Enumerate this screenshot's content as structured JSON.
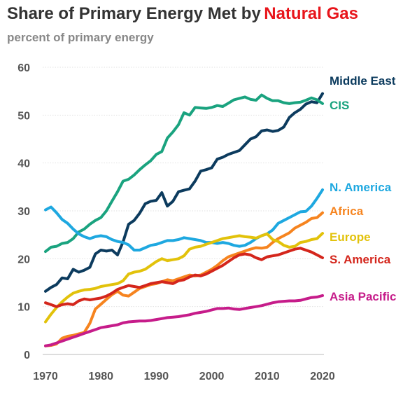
{
  "chart_data": {
    "type": "line",
    "title": "Share of Primary Energy Met by",
    "title_highlight": "Natural Gas",
    "title_highlight_color": "#e8151b",
    "subtitle": "percent of primary energy",
    "xlabel": "",
    "ylabel": "",
    "xlim": [
      1970,
      2020
    ],
    "ylim": [
      0,
      60
    ],
    "x_ticks": [
      1970,
      1980,
      1990,
      2000,
      2010,
      2020
    ],
    "y_ticks": [
      0,
      10,
      20,
      30,
      40,
      50,
      60
    ],
    "grid": true,
    "legend": "direct labels at right end of lines",
    "x": [
      1970,
      1971,
      1972,
      1973,
      1974,
      1975,
      1976,
      1977,
      1978,
      1979,
      1980,
      1981,
      1982,
      1983,
      1984,
      1985,
      1986,
      1987,
      1988,
      1989,
      1990,
      1991,
      1992,
      1993,
      1994,
      1995,
      1996,
      1997,
      1998,
      1999,
      2000,
      2001,
      2002,
      2003,
      2004,
      2005,
      2006,
      2007,
      2008,
      2009,
      2010,
      2011,
      2012,
      2013,
      2014,
      2015,
      2016,
      2017,
      2018,
      2019,
      2020
    ],
    "series": [
      {
        "name": "Middle East",
        "color": "#0c3b5e",
        "values": [
          13.2,
          14.0,
          14.6,
          16.0,
          15.8,
          17.8,
          17.2,
          17.6,
          18.2,
          21.0,
          21.8,
          21.6,
          21.8,
          20.8,
          23.5,
          27.2,
          28.0,
          29.5,
          31.5,
          32.0,
          32.2,
          33.8,
          31.0,
          32.0,
          34.0,
          34.3,
          34.6,
          36.2,
          38.3,
          38.6,
          39.0,
          40.8,
          41.2,
          41.8,
          42.2,
          42.6,
          43.8,
          45.0,
          45.5,
          46.7,
          46.9,
          46.6,
          46.8,
          47.5,
          49.5,
          50.5,
          51.2,
          52.3,
          52.8,
          52.6,
          54.5
        ]
      },
      {
        "name": "CIS",
        "color": "#1aa37f",
        "values": [
          21.5,
          22.4,
          22.6,
          23.2,
          23.4,
          24.2,
          25.6,
          26.2,
          27.2,
          28.0,
          28.6,
          30.0,
          32.0,
          34.0,
          36.2,
          36.6,
          37.5,
          38.6,
          39.6,
          40.5,
          41.8,
          42.4,
          45.2,
          46.5,
          48.0,
          50.5,
          50.0,
          51.6,
          51.5,
          51.4,
          51.6,
          52.0,
          51.8,
          52.5,
          53.2,
          53.5,
          53.8,
          53.3,
          53.1,
          54.2,
          53.5,
          53.0,
          53.0,
          52.6,
          52.4,
          52.6,
          52.7,
          53.1,
          53.6,
          53.2,
          52.4
        ]
      },
      {
        "name": "N. America",
        "color": "#1ea8e0",
        "values": [
          30.2,
          30.8,
          29.6,
          28.2,
          27.4,
          26.2,
          25.2,
          24.6,
          24.2,
          24.6,
          24.8,
          24.6,
          24.0,
          23.6,
          23.4,
          22.9,
          21.8,
          21.8,
          22.3,
          22.8,
          23.0,
          23.4,
          23.8,
          23.8,
          24.0,
          24.4,
          24.2,
          24.0,
          23.8,
          23.4,
          23.4,
          23.2,
          23.4,
          23.2,
          22.8,
          22.6,
          22.8,
          23.4,
          24.2,
          24.8,
          25.2,
          26.0,
          27.4,
          28.0,
          28.6,
          29.2,
          29.8,
          29.9,
          31.0,
          32.6,
          34.4
        ]
      },
      {
        "name": "Africa",
        "color": "#f6841f",
        "values": [
          1.8,
          1.9,
          2.2,
          3.4,
          3.8,
          4.0,
          4.3,
          4.6,
          6.5,
          9.5,
          10.5,
          11.5,
          12.5,
          13.2,
          12.4,
          12.2,
          13.0,
          13.8,
          14.2,
          14.6,
          14.8,
          15.2,
          15.6,
          15.4,
          15.8,
          16.2,
          16.6,
          16.4,
          16.6,
          17.2,
          17.8,
          18.6,
          19.6,
          20.4,
          20.8,
          21.2,
          21.6,
          22.0,
          22.3,
          22.2,
          22.4,
          23.4,
          24.2,
          24.8,
          25.4,
          26.4,
          27.0,
          27.6,
          28.4,
          28.6,
          29.6
        ]
      },
      {
        "name": "Europe",
        "color": "#e2c20b",
        "values": [
          6.8,
          8.4,
          9.8,
          11.0,
          12.0,
          12.8,
          13.2,
          13.5,
          13.6,
          13.8,
          14.2,
          14.4,
          14.6,
          14.8,
          15.4,
          16.8,
          17.2,
          17.4,
          17.8,
          18.6,
          19.4,
          20.0,
          19.6,
          19.8,
          20.0,
          20.6,
          22.0,
          22.4,
          22.6,
          23.0,
          23.4,
          23.8,
          24.2,
          24.4,
          24.6,
          24.8,
          24.6,
          24.5,
          24.3,
          24.8,
          25.2,
          24.0,
          23.6,
          22.8,
          22.4,
          22.6,
          23.4,
          23.6,
          24.0,
          24.2,
          25.3
        ]
      },
      {
        "name": "S. America",
        "color": "#d4261c",
        "values": [
          10.8,
          10.4,
          10.0,
          10.4,
          10.6,
          10.4,
          11.2,
          11.6,
          11.4,
          11.6,
          11.8,
          12.2,
          12.8,
          13.6,
          14.0,
          14.4,
          14.2,
          14.0,
          14.4,
          14.8,
          15.0,
          15.2,
          15.0,
          14.8,
          15.4,
          15.6,
          16.2,
          16.6,
          16.4,
          16.8,
          17.4,
          18.0,
          18.6,
          19.4,
          20.2,
          20.8,
          21.0,
          20.8,
          20.2,
          19.8,
          20.4,
          20.6,
          20.8,
          21.2,
          21.6,
          22.0,
          22.2,
          21.8,
          21.4,
          20.8,
          20.2
        ]
      },
      {
        "name": "Asia Pacific",
        "color": "#c61c8a",
        "values": [
          1.8,
          2.0,
          2.4,
          2.8,
          3.2,
          3.6,
          4.0,
          4.4,
          4.8,
          5.2,
          5.6,
          5.8,
          6.0,
          6.2,
          6.6,
          6.8,
          6.9,
          7.0,
          7.0,
          7.1,
          7.3,
          7.5,
          7.7,
          7.8,
          7.9,
          8.1,
          8.3,
          8.6,
          8.8,
          9.0,
          9.3,
          9.6,
          9.6,
          9.7,
          9.5,
          9.4,
          9.6,
          9.8,
          10.0,
          10.2,
          10.5,
          10.8,
          11.0,
          11.1,
          11.2,
          11.2,
          11.3,
          11.6,
          11.9,
          12.0,
          12.3
        ]
      }
    ]
  }
}
